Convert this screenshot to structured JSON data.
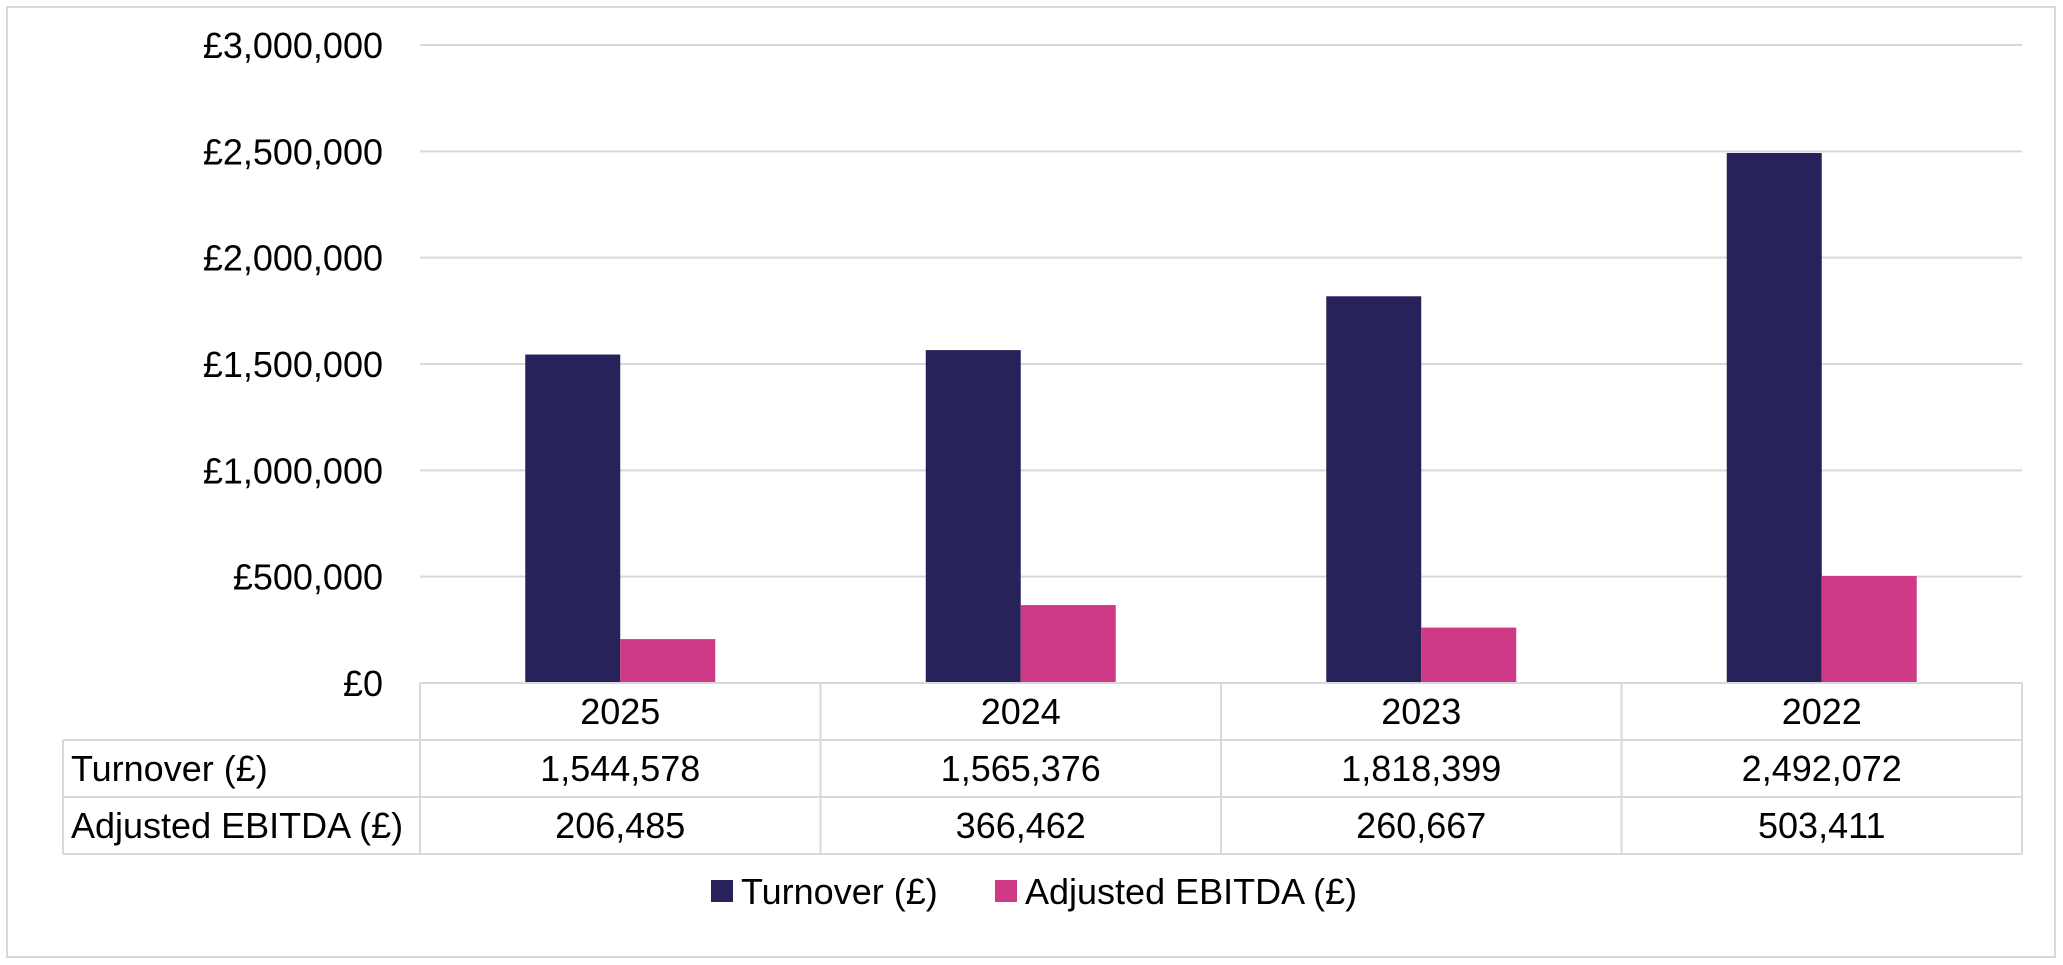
{
  "chart_data": {
    "type": "bar",
    "categories": [
      "2025",
      "2024",
      "2023",
      "2022"
    ],
    "series": [
      {
        "name": "Turnover (£)",
        "values": [
          1544578,
          1565376,
          1818399,
          2492072
        ],
        "labels": [
          "1,544,578",
          "1,565,376",
          "1,818,399",
          "2,492,072"
        ],
        "color": "#28225a"
      },
      {
        "name": "Adjusted EBITDA (£)",
        "values": [
          206485,
          366462,
          260667,
          503411
        ],
        "labels": [
          "206,485",
          "366,462",
          "260,667",
          "503,411"
        ],
        "color": "#cf3a86"
      }
    ],
    "yticks": [
      "£0",
      "£500,000",
      "£1,000,000",
      "£1,500,000",
      "£2,000,000",
      "£2,500,000",
      "£3,000,000"
    ],
    "ylim": [
      0,
      3000000
    ],
    "grid": true,
    "data_table": true,
    "legend": "bottom",
    "title": "",
    "xlabel": "",
    "ylabel": ""
  }
}
